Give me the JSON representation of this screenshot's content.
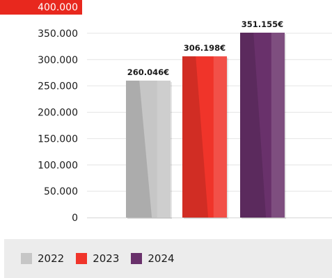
{
  "chart_data": {
    "type": "bar",
    "categories": [
      "2022",
      "2023",
      "2024"
    ],
    "values": [
      260046,
      306198,
      351155
    ],
    "data_labels": [
      "260.046€",
      "306.198€",
      "351.155€"
    ],
    "y_ticks": [
      0,
      50000,
      100000,
      150000,
      200000,
      250000,
      300000,
      350000,
      400000
    ],
    "y_tick_labels": [
      "0",
      "50.000",
      "100.000",
      "150.000",
      "200.000",
      "250.000",
      "300.000",
      "350.000",
      "400.000"
    ],
    "ylim": [
      0,
      400000
    ],
    "grid": true,
    "legend_position": "bottom",
    "colors": [
      "#c6c6c6",
      "#f0342a",
      "#69316b"
    ],
    "accent_color": "#e8281e"
  }
}
